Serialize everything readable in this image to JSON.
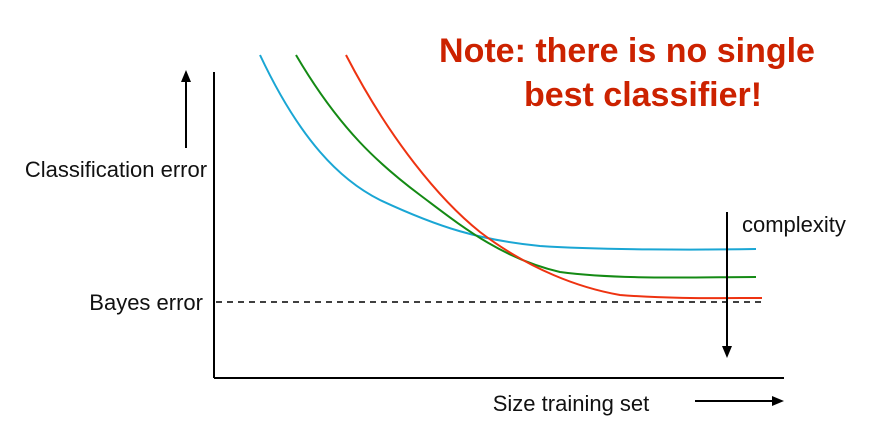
{
  "note": {
    "line1": "Note: there is no single",
    "line2": "best classifier!",
    "color": "#cc2200"
  },
  "axes": {
    "ylabel": "Classification error",
    "xlabel": "Size training set"
  },
  "bayes_label": "Bayes error",
  "complexity_label": "complexity",
  "colors": {
    "curve_low_complexity": "#1aa6d4",
    "curve_mid_complexity": "#148a14",
    "curve_high_complexity": "#ee3311"
  },
  "icons": {
    "y_direction": "arrow-up-icon",
    "x_direction": "arrow-right-icon",
    "complexity_direction": "arrow-down-icon"
  }
}
